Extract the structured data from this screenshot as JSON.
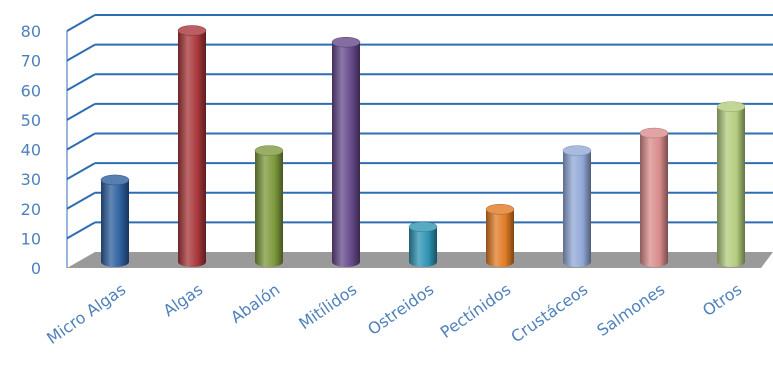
{
  "chart_data": {
    "type": "bar",
    "style": "3d-cylinder",
    "categories": [
      "Micro Algas",
      "Algas",
      "Abalón",
      "Mitílidos",
      "Ostreidos",
      "Pectínidos",
      "Crustáceos",
      "Salmones",
      "Otros"
    ],
    "values": [
      28,
      79,
      38,
      75,
      12,
      18,
      38,
      44,
      53
    ],
    "colors": [
      "#2e5f9e",
      "#a8373a",
      "#7d9a3d",
      "#65498a",
      "#2e93b3",
      "#e07b25",
      "#92a9d8",
      "#d98c8c",
      "#b3cc7e"
    ],
    "ylim": [
      0,
      80
    ],
    "yticks": [
      "0",
      "10",
      "20",
      "30",
      "40",
      "50",
      "60",
      "70",
      "80"
    ],
    "grid": true,
    "floor_color": "#9a9a9a",
    "gridline_color": "#2f6db3",
    "text_color": "#4f81bd"
  }
}
